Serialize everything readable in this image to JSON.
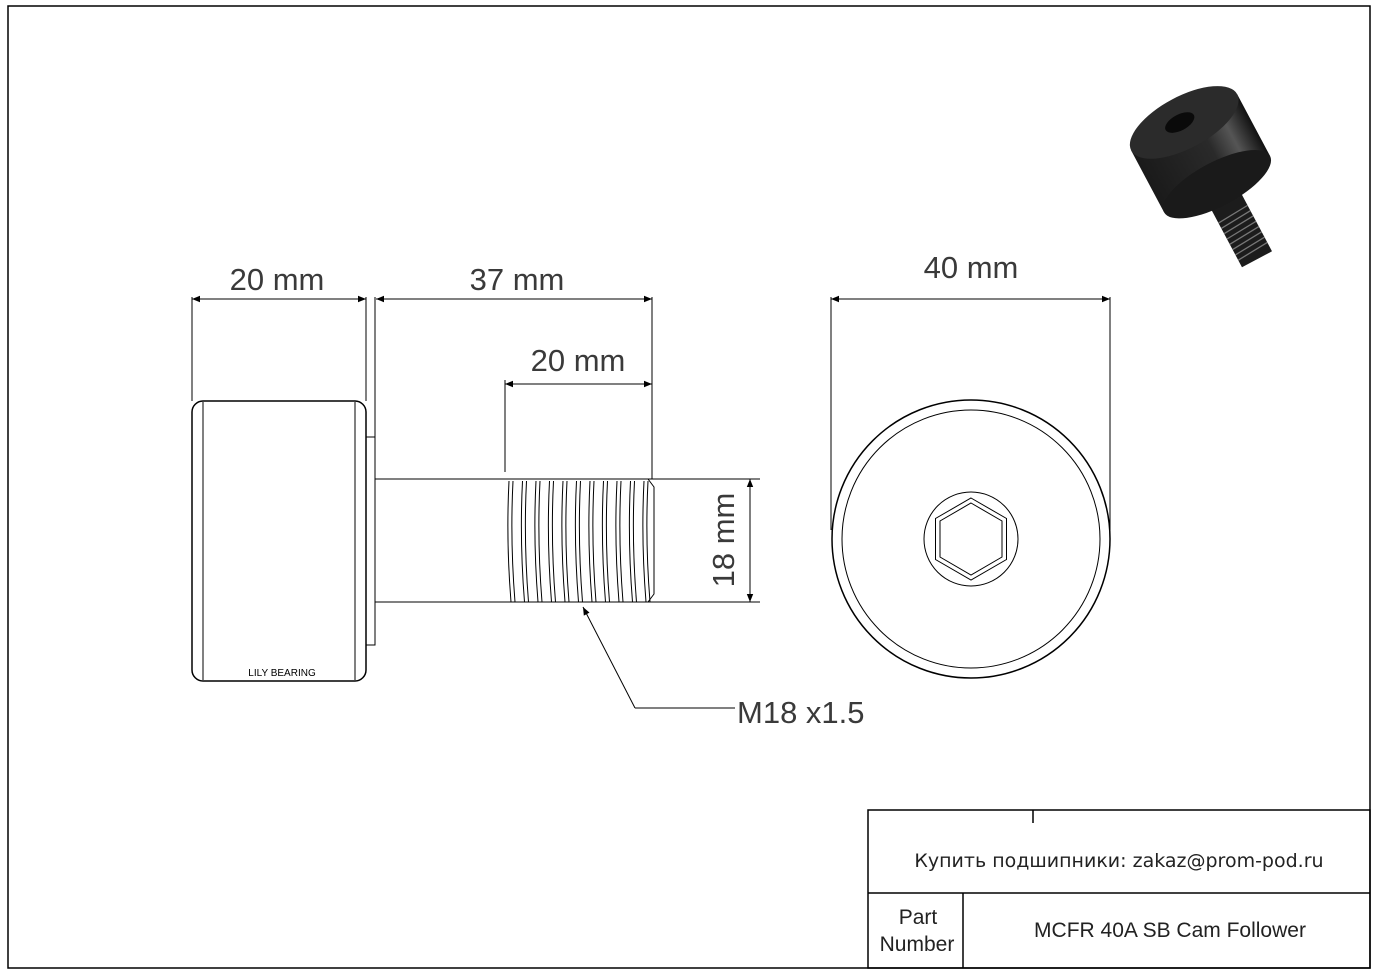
{
  "drawing": {
    "dimensions": {
      "roller_width": "20 mm",
      "stud_length": "37 mm",
      "thread_length": "20 mm",
      "stud_diameter": "18 mm",
      "outer_diameter": "40 mm",
      "thread_spec": "M18 x1.5"
    },
    "body_marking": "LILY BEARING",
    "product_image": "cam-follower-3d-render"
  },
  "title_block": {
    "contact": "Купить подшипники: zakaz@prom-pod.ru",
    "part_label_line1": "Part",
    "part_label_line2": "Number",
    "part_number": "MCFR 40A SB Cam Follower"
  }
}
